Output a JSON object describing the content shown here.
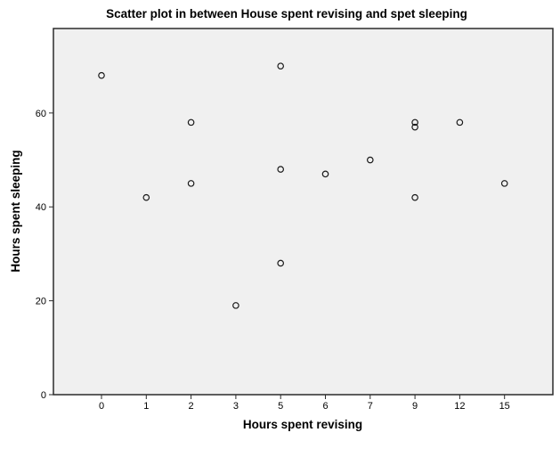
{
  "chart_data": {
    "type": "scatter",
    "title": "Scatter plot in between House spent revising and spet sleeping",
    "xlabel": "Hours spent revising",
    "ylabel": "Hours spent sleeping",
    "x_axis_type": "categorical-even-spacing",
    "x_tick_labels": [
      "0",
      "1",
      "2",
      "3",
      "5",
      "6",
      "7",
      "9",
      "12",
      "15"
    ],
    "y_ticks": [
      0,
      20,
      40,
      60
    ],
    "ylim": [
      0,
      78
    ],
    "grid": false,
    "legend_position": "none",
    "plot_bg_color": "#f0f0f0",
    "border_color": "#2b2b2b",
    "marker_style": "open-circle",
    "marker_color": "#1a1a1a",
    "points": [
      {
        "x": 0,
        "y": 68
      },
      {
        "x": 1,
        "y": 42
      },
      {
        "x": 2,
        "y": 58
      },
      {
        "x": 2,
        "y": 45
      },
      {
        "x": 3,
        "y": 19
      },
      {
        "x": 5,
        "y": 70
      },
      {
        "x": 5,
        "y": 48
      },
      {
        "x": 5,
        "y": 28
      },
      {
        "x": 6,
        "y": 47
      },
      {
        "x": 7,
        "y": 50
      },
      {
        "x": 9,
        "y": 58
      },
      {
        "x": 9,
        "y": 57
      },
      {
        "x": 9,
        "y": 42
      },
      {
        "x": 12,
        "y": 58
      },
      {
        "x": 15,
        "y": 45
      }
    ]
  }
}
